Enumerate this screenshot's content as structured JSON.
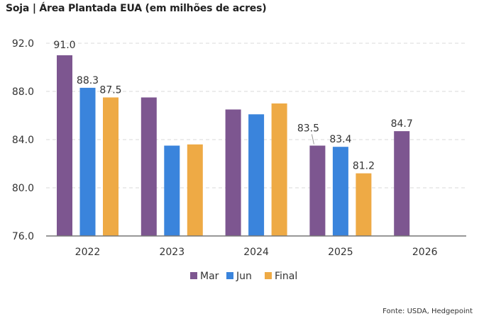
{
  "chart_data": {
    "type": "bar",
    "title": "Soja | Área Plantada EUA (em milhões de acres)",
    "xlabel": "",
    "ylabel": "",
    "ylim": [
      76.0,
      92.0
    ],
    "yticks": [
      "76.0",
      "80.0",
      "84.0",
      "88.0",
      "92.0"
    ],
    "ytick_values": [
      76,
      80,
      84,
      88,
      92
    ],
    "grid": true,
    "legend_position": "bottom-center",
    "categories": [
      "2022",
      "2023",
      "2024",
      "2025",
      "2026"
    ],
    "series": [
      {
        "name": "Mar",
        "color": "#7d5690",
        "values": [
          91.0,
          87.5,
          86.5,
          83.5,
          84.7
        ],
        "labels": [
          "91.0",
          null,
          null,
          "83.5",
          "84.7"
        ]
      },
      {
        "name": "Jun",
        "color": "#3a84dc",
        "values": [
          88.3,
          83.5,
          86.1,
          83.4,
          null
        ],
        "labels": [
          "88.3",
          null,
          null,
          "83.4",
          null
        ]
      },
      {
        "name": "Final",
        "color": "#eeaa45",
        "values": [
          87.5,
          83.6,
          87.0,
          81.2,
          null
        ],
        "labels": [
          "87.5",
          null,
          null,
          "81.2",
          null
        ]
      }
    ]
  },
  "footer": {
    "source": "Fonte: USDA, Hedgepoint"
  }
}
